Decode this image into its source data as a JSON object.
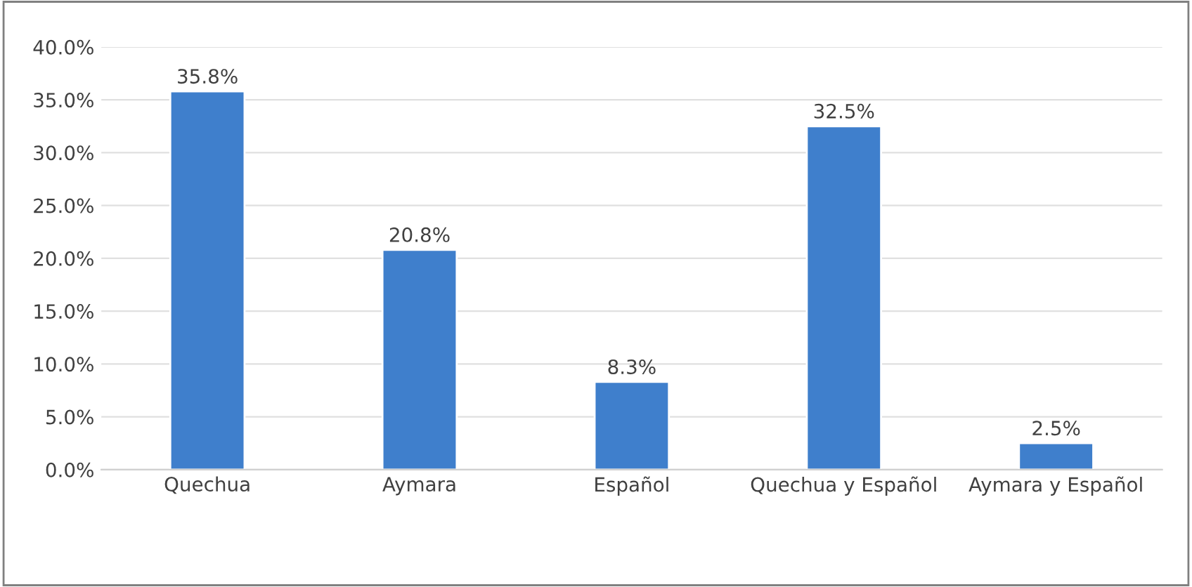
{
  "chart_data": {
    "type": "bar",
    "categories": [
      "Quechua",
      "Aymara",
      "Español",
      "Quechua y Español",
      "Aymara y Español"
    ],
    "values": [
      35.8,
      20.8,
      8.3,
      32.5,
      2.5
    ],
    "value_labels": [
      "35.8%",
      "20.8%",
      "8.3%",
      "32.5%",
      "2.5%"
    ],
    "color": "#3f7fcc",
    "ylim": [
      0,
      40
    ],
    "yticks": [
      {
        "value": 0,
        "label": "0.0%"
      },
      {
        "value": 5,
        "label": "5.0%"
      },
      {
        "value": 10,
        "label": "10.0%"
      },
      {
        "value": 15,
        "label": "15.0%"
      },
      {
        "value": 20,
        "label": "20.0%"
      },
      {
        "value": 25,
        "label": "25.0%"
      },
      {
        "value": 30,
        "label": "30.0%"
      },
      {
        "value": 35,
        "label": "35.0%"
      },
      {
        "value": 40,
        "label": "40.0%"
      }
    ],
    "grid": "y"
  }
}
